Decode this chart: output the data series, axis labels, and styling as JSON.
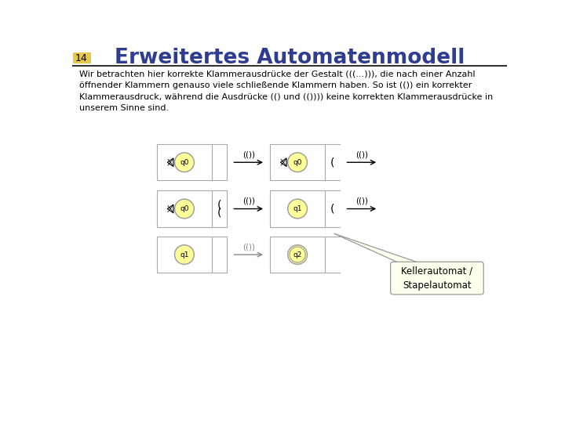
{
  "title": "Erweitertes Automatenmodell",
  "title_num": "14",
  "bg_color": "#ffffff",
  "title_color": "#2e3d8f",
  "title_bg": "#e8c84a",
  "body_text": "Wir betrachten hier korrekte Klammerausdrücke der Gestalt (((...))), die nach einer Anzahl\nöffnender Klammern genauso viele schließende Klammern haben. So ist (()) ein korrekter\nKlammerausdruck, während die Ausdrücke (() und (()))) keine korrekten Klammerausdrücke in\nunserem Sinne sind.",
  "node_fill": "#ffff99",
  "node_edge": "#999999",
  "box_edge": "#aaaaaa",
  "callout_fill": "#ffffee",
  "callout_text": "Kellerautomat /\nStapelautomat",
  "trans_label_row1": "(())",
  "trans_label_row2": "(())",
  "trans_label_row3": "(())",
  "gray_trans": true
}
